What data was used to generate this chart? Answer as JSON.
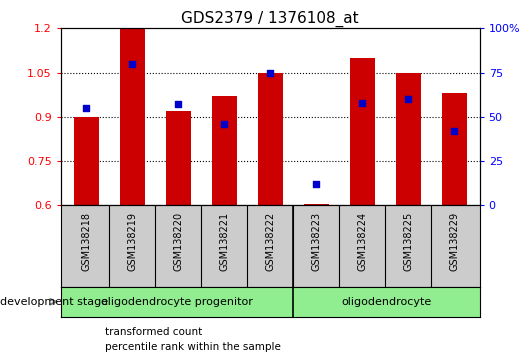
{
  "title": "GDS2379 / 1376108_at",
  "samples": [
    "GSM138218",
    "GSM138219",
    "GSM138220",
    "GSM138221",
    "GSM138222",
    "GSM138223",
    "GSM138224",
    "GSM138225",
    "GSM138229"
  ],
  "transformed_count": [
    0.9,
    1.2,
    0.92,
    0.97,
    1.05,
    0.605,
    1.1,
    1.05,
    0.98
  ],
  "percentile_rank": [
    55,
    80,
    57,
    46,
    75,
    12,
    58,
    60,
    42
  ],
  "ylim_left": [
    0.6,
    1.2
  ],
  "ylim_right": [
    0,
    100
  ],
  "yticks_left": [
    0.6,
    0.75,
    0.9,
    1.05,
    1.2
  ],
  "yticks_right": [
    0,
    25,
    50,
    75,
    100
  ],
  "bar_color": "#cc0000",
  "dot_color": "#0000cc",
  "bar_width": 0.55,
  "group_boundary": 4.5,
  "group1_label": "oligodendrocyte progenitor",
  "group2_label": "oligodendrocyte",
  "group_color": "#90ee90",
  "tick_box_color": "#cccccc",
  "legend_labels": [
    "transformed count",
    "percentile rank within the sample"
  ],
  "legend_colors": [
    "#cc0000",
    "#0000cc"
  ],
  "dev_stage_label": "development stage",
  "background_color": "#ffffff",
  "title_fontsize": 11
}
